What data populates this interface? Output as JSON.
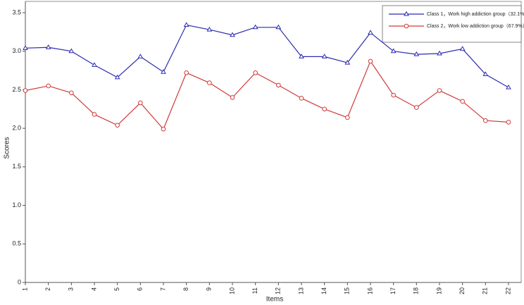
{
  "chart_data": {
    "type": "line",
    "xlabel": "Items",
    "ylabel": "Scores",
    "categories": [
      "1",
      "2",
      "3",
      "4",
      "5",
      "6",
      "7",
      "8",
      "9",
      "10",
      "11",
      "12",
      "13",
      "14",
      "15",
      "16",
      "17",
      "18",
      "19",
      "20",
      "21",
      "22"
    ],
    "series": [
      {
        "name": "Class 1，Work high addiction group（32.1%）",
        "color": "#2b2bb0",
        "marker": "triangle",
        "values": [
          3.04,
          3.05,
          3.0,
          2.82,
          2.66,
          2.93,
          2.73,
          3.34,
          3.28,
          3.21,
          3.31,
          3.31,
          2.93,
          2.93,
          2.85,
          3.24,
          3.0,
          2.96,
          2.97,
          3.03,
          2.7,
          2.53
        ]
      },
      {
        "name": "Class 2，Work low addiction group（67.9%）",
        "color": "#d03a3a",
        "marker": "circle",
        "values": [
          2.49,
          2.55,
          2.46,
          2.18,
          2.04,
          2.33,
          1.99,
          2.72,
          2.59,
          2.4,
          2.72,
          2.56,
          2.39,
          2.25,
          2.14,
          2.87,
          2.43,
          2.27,
          2.49,
          2.35,
          2.1,
          2.08
        ]
      }
    ],
    "ylim": [
      0,
      3.5
    ],
    "yticks": [
      0,
      0.5,
      {
        "value": 1,
        "label": "1.0"
      },
      1.5,
      {
        "value": 2,
        "label": "2.0"
      },
      2.5,
      {
        "value": 3,
        "label": "3.0"
      },
      3.5
    ],
    "grid": false,
    "legend": "upper right"
  }
}
